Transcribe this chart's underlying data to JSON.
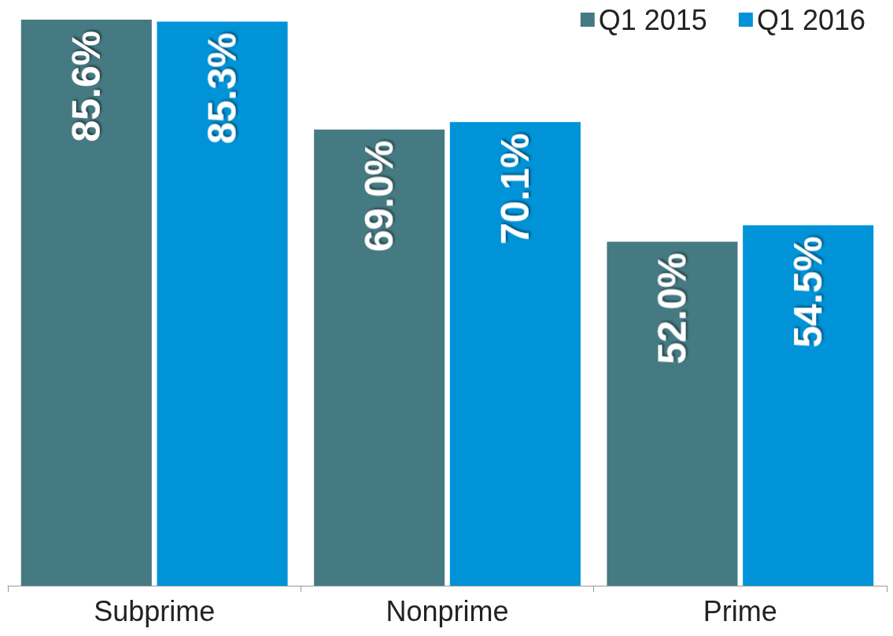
{
  "chart_data": {
    "type": "bar",
    "categories": [
      "Subprime",
      "Nonprime",
      "Prime"
    ],
    "series": [
      {
        "name": "Q1 2015",
        "color": "#467a82",
        "values": [
          85.6,
          69.0,
          52.0
        ],
        "value_labels": [
          "85.6%",
          "69.0%",
          "52.0%"
        ]
      },
      {
        "name": "Q1 2016",
        "color": "#0093d8",
        "values": [
          85.3,
          70.1,
          54.5
        ],
        "value_labels": [
          "85.3%",
          "70.1%",
          "54.5%"
        ]
      }
    ],
    "legend": "top right"
  }
}
